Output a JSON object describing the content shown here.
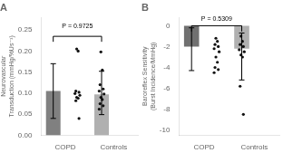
{
  "chart_data": [
    {
      "type": "bar",
      "title": "A",
      "categories": [
        "COPD",
        "Controls"
      ],
      "values": [
        0.105,
        0.097
      ],
      "error_upper": [
        0.065,
        0.055
      ],
      "error_lower": [
        0.065,
        0.048
      ],
      "colors": [
        "#808080",
        "#b0b0b0"
      ],
      "ylabel": "Neurovascular\nTransduction (mmHg/%Us⁻¹)",
      "ylim": [
        0.0,
        0.28
      ],
      "yticks": [
        {
          "value": 0.0,
          "label": "0.00"
        },
        {
          "value": 0.05,
          "label": "0.05"
        },
        {
          "value": 0.1,
          "label": "0.10"
        },
        {
          "value": 0.15,
          "label": "0.15"
        },
        {
          "value": 0.2,
          "label": "0.20"
        },
        {
          "value": 0.25,
          "label": "0.25"
        }
      ],
      "grid": false,
      "points": {
        "values": [
          [
            0.205,
            0.2,
            0.105,
            0.102,
            0.099,
            0.095,
            0.09,
            0.088,
            0.082,
            0.04
          ],
          [
            0.198,
            0.155,
            0.12,
            0.11,
            0.105,
            0.098,
            0.09,
            0.085,
            0.075,
            0.07,
            0.062
          ]
        ],
        "color": "#111111"
      },
      "annotations": [
        {
          "text": "P = 0.9725",
          "y": 0.252,
          "bracket_y": 0.235,
          "bracket_ends": [
            0.222,
            0.222
          ]
        }
      ]
    },
    {
      "type": "bar",
      "title": "B",
      "categories": [
        "COPD",
        "Controls"
      ],
      "values": [
        -2.0,
        -2.2
      ],
      "error_upper": [
        1.8,
        1.5
      ],
      "error_lower": [
        2.3,
        3.0
      ],
      "colors": [
        "#707070",
        "#b0b0b0"
      ],
      "ylabel": "Baroreflex Sensitivity\n(Burst Incidence/MmHg)",
      "ylim": [
        -10.5,
        0.8
      ],
      "yticks": [
        0,
        -2,
        -4,
        -6,
        -8,
        -10
      ],
      "grid": false,
      "points": {
        "values": [
          [
            -1.2,
            -1.5,
            -1.8,
            -2.0,
            -2.2,
            -2.5,
            -3.0,
            -3.5,
            -4.0,
            -4.2,
            -4.5
          ],
          [
            -1.0,
            -1.5,
            -1.8,
            -2.0,
            -2.3,
            -2.5,
            -2.8,
            -3.0,
            -5.8,
            -8.5
          ]
        ],
        "color": "#111111"
      },
      "annotations": [
        {
          "text": "P = 0.5309",
          "y": 0.35,
          "bracket_y": -0.0,
          "bracket_ends": [
            -0.55,
            -0.55
          ]
        }
      ]
    }
  ]
}
